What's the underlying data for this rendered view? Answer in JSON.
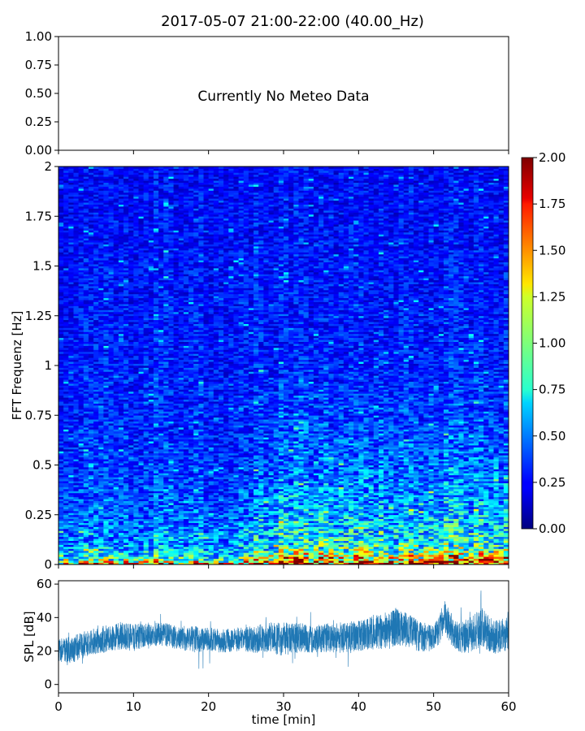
{
  "title": "2017-05-07 21:00-22:00 (40.00_Hz)",
  "chart_data": [
    {
      "panel": "meteo",
      "type": "line",
      "message": "Currently No Meteo Data",
      "ylim": [
        0,
        1
      ],
      "yticks": [
        "0.00",
        "0.25",
        "0.50",
        "0.75",
        "1.00"
      ],
      "xlim": [
        0,
        60
      ],
      "grid": false
    },
    {
      "panel": "spectrogram",
      "type": "heatmap",
      "ylabel": "FFT Frequenz [Hz]",
      "ylim": [
        0,
        2
      ],
      "yticks": [
        "0",
        "0.25",
        "0.5",
        "0.75",
        "1",
        "1.25",
        "1.5",
        "1.75",
        "2"
      ],
      "xlim": [
        0,
        60
      ],
      "colormap": "jet",
      "colorbar": {
        "range": [
          0,
          2
        ],
        "ticks": [
          "0.00",
          "0.25",
          "0.50",
          "0.75",
          "1.00",
          "1.25",
          "1.50",
          "1.75",
          "2.00"
        ]
      },
      "approx_mean_level_by_freq": {
        "freq_hz": [
          0.0,
          0.02,
          0.05,
          0.1,
          0.25,
          0.5,
          1.0,
          2.0
        ],
        "level_t0_27min": [
          1.6,
          1.0,
          0.7,
          0.55,
          0.45,
          0.35,
          0.3,
          0.25
        ],
        "level_t27_60min": [
          2.0,
          1.5,
          1.1,
          0.8,
          0.6,
          0.45,
          0.3,
          0.25
        ]
      }
    },
    {
      "panel": "spl",
      "type": "line",
      "ylabel": "SPL [dB]",
      "xlabel": "time [min]",
      "ylim": [
        -5,
        62
      ],
      "yticks": [
        "0",
        "20",
        "40",
        "60"
      ],
      "xlim": [
        0,
        60
      ],
      "xticks": [
        "0",
        "10",
        "20",
        "30",
        "40",
        "50",
        "60"
      ],
      "series": [
        {
          "color": "#1f77b4",
          "x": [
            0,
            2,
            4,
            6,
            8,
            10,
            12,
            14,
            16,
            18,
            20,
            22,
            24,
            26,
            28,
            30,
            32,
            34,
            36,
            38,
            40,
            42,
            44,
            45,
            46,
            48,
            50,
            51.5,
            53,
            55,
            56.5,
            58,
            60
          ],
          "y": [
            20,
            21,
            25,
            27,
            29,
            28,
            30,
            30,
            28,
            27,
            27,
            26,
            27,
            27,
            28,
            27,
            28,
            27,
            28,
            28,
            29,
            31,
            32,
            35,
            33,
            29,
            27,
            40,
            28,
            30,
            34,
            28,
            30
          ],
          "band": [
            7,
            8,
            8,
            8,
            8,
            8,
            7,
            7,
            7,
            8,
            7,
            7,
            7,
            8,
            9,
            10,
            9,
            8,
            9,
            9,
            9,
            10,
            11,
            12,
            11,
            9,
            8,
            10,
            9,
            11,
            12,
            10,
            10
          ]
        }
      ]
    }
  ]
}
